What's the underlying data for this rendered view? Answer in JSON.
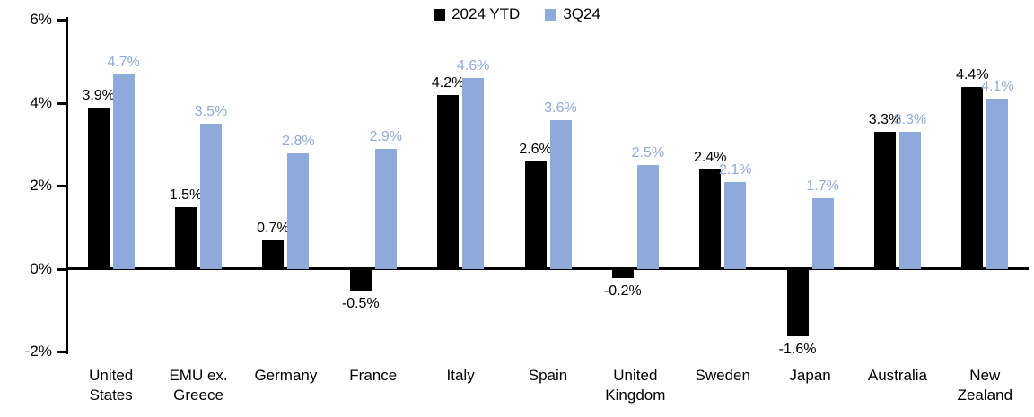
{
  "chart_data": {
    "type": "bar",
    "title": "",
    "categories": [
      "United States",
      "EMU ex. Greece",
      "Germany",
      "France",
      "Italy",
      "Spain",
      "United Kingdom",
      "Sweden",
      "Japan",
      "Australia",
      "New Zealand"
    ],
    "series": [
      {
        "name": "2024 YTD",
        "color": "#000000",
        "label_color": "#000000",
        "values": [
          3.9,
          1.5,
          0.7,
          -0.5,
          4.2,
          2.6,
          -0.2,
          2.4,
          -1.6,
          3.3,
          4.4
        ]
      },
      {
        "name": "3Q24",
        "color": "#8EAADB",
        "label_color": "#8EAADB",
        "values": [
          4.7,
          3.5,
          2.8,
          2.9,
          4.6,
          3.6,
          2.5,
          2.1,
          1.7,
          3.3,
          4.1
        ]
      }
    ],
    "ylim": [
      -2,
      6
    ],
    "yticks": [
      6,
      4,
      2,
      0,
      -2
    ],
    "ytick_labels": [
      "6%",
      "4%",
      "2%",
      "0%",
      "-2%"
    ],
    "value_suffix": "%",
    "value_decimals": 1,
    "legend_position": "top-center",
    "grid": false,
    "axis_color": "#000000",
    "background_color": "#ffffff"
  }
}
